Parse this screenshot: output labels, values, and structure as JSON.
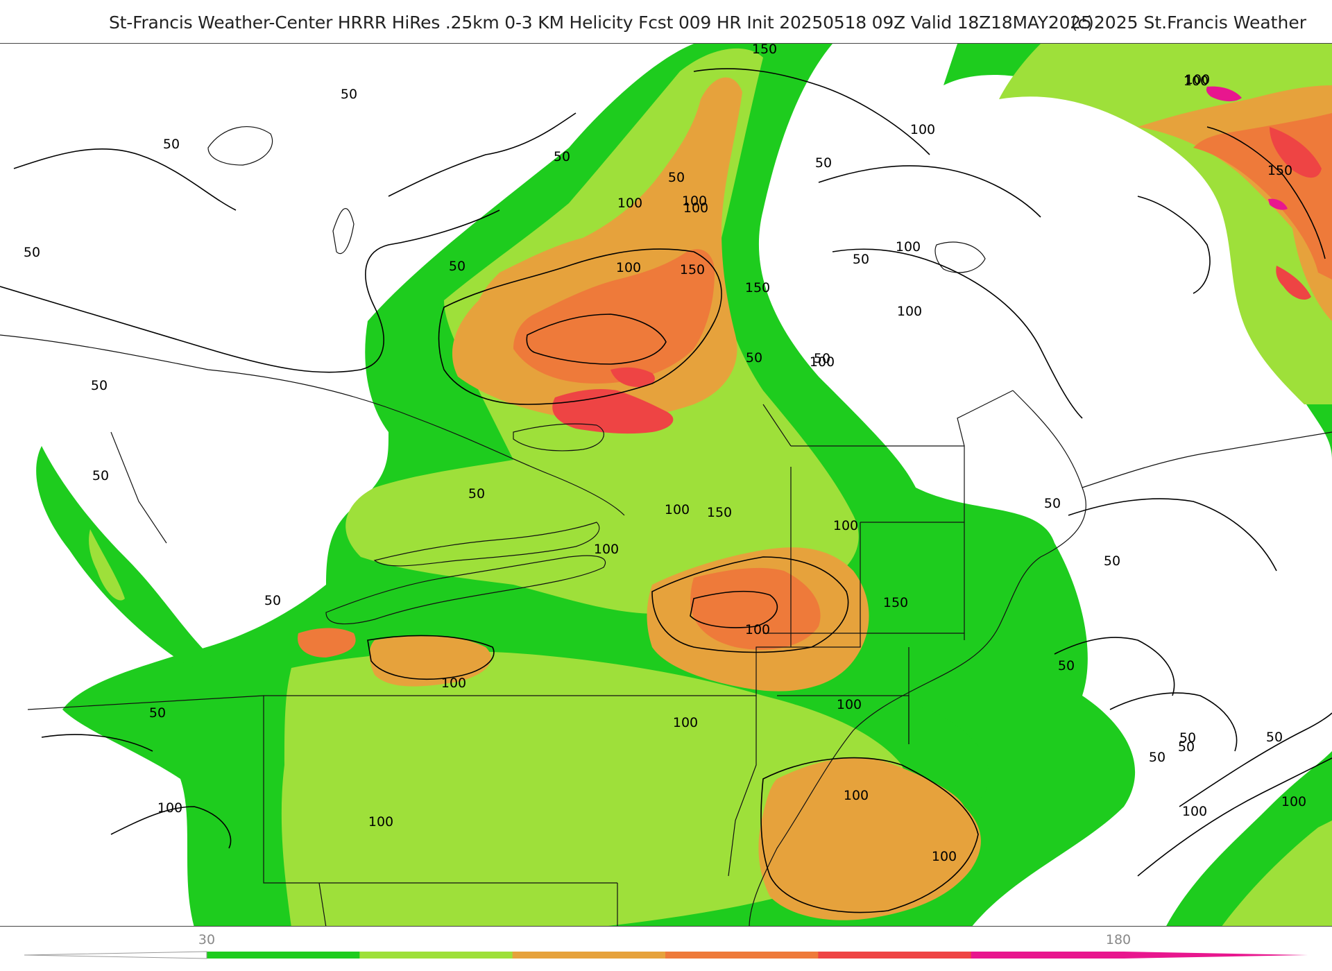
{
  "header": {
    "title": "St-Francis Weather-Center HRRR HiRes .25km 0-3 KM Helicity Fcst 009 HR Init 20250518 09Z  Valid 18Z18MAY2025",
    "copyright": "(c)2025 St.Francis Weather"
  },
  "colorbar": {
    "tick_min": "30",
    "tick_max": "180",
    "colors": [
      "#1ecc1e",
      "#9ee03a",
      "#e6a23c",
      "#ee7a3a",
      "#ee4444",
      "#e8168e"
    ]
  },
  "map": {
    "contour_labels": [
      "150",
      "50",
      "50",
      "100",
      "50",
      "50",
      "100",
      "50",
      "100",
      "100",
      "150",
      "100",
      "50",
      "100",
      "100",
      "50",
      "50",
      "150",
      "150",
      "50",
      "100",
      "50",
      "100",
      "100",
      "50",
      "50",
      "50",
      "150",
      "100",
      "100",
      "100",
      "50",
      "50",
      "100",
      "150",
      "50",
      "100",
      "100",
      "50",
      "100",
      "100",
      "50",
      "50",
      "50",
      "100",
      "100",
      "100",
      "100",
      "50",
      "50",
      "100"
    ]
  }
}
